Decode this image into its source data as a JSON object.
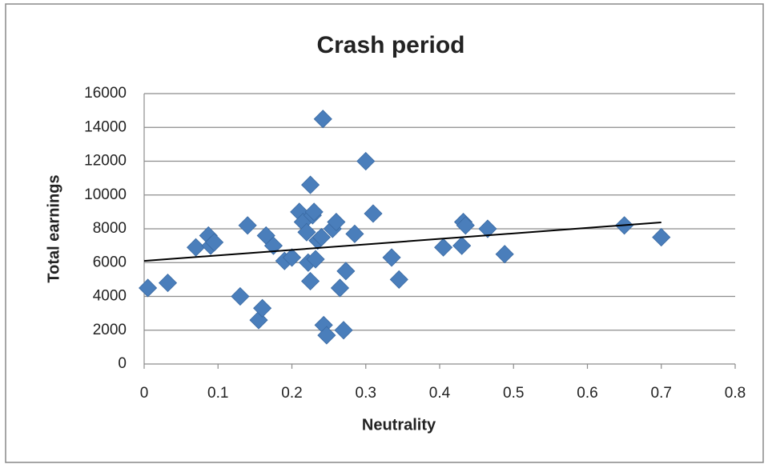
{
  "chart_data": {
    "type": "scatter",
    "title": "Crash period",
    "x_label": "Neutrality",
    "y_label": "Total earnings",
    "color": "#4a7ebb",
    "x": [
      0.005,
      0.032,
      0.07,
      0.087,
      0.09,
      0.095,
      0.13,
      0.14,
      0.155,
      0.16,
      0.165,
      0.175,
      0.19,
      0.2,
      0.21,
      0.215,
      0.22,
      0.222,
      0.225,
      0.225,
      0.228,
      0.23,
      0.232,
      0.235,
      0.24,
      0.242,
      0.243,
      0.247,
      0.255,
      0.26,
      0.265,
      0.27,
      0.273,
      0.285,
      0.3,
      0.31,
      0.335,
      0.345,
      0.405,
      0.43,
      0.432,
      0.435,
      0.465,
      0.488,
      0.65,
      0.7
    ],
    "values": [
      4500,
      4800,
      6900,
      7600,
      7000,
      7200,
      4000,
      8200,
      2600,
      3300,
      7600,
      7000,
      6100,
      6300,
      9000,
      8400,
      7800,
      6000,
      10600,
      4900,
      8800,
      9000,
      6200,
      7300,
      7500,
      14500,
      2300,
      1700,
      8000,
      8400,
      4500,
      2000,
      5500,
      7700,
      12000,
      8900,
      6300,
      5000,
      6900,
      7000,
      8400,
      8200,
      8000,
      6500,
      8200,
      7500
    ],
    "trendline": {
      "x": [
        0,
        0.7
      ],
      "y": [
        6100,
        8380
      ],
      "color": "#000000"
    },
    "xlim": [
      0,
      0.8
    ],
    "xticks": [
      0,
      0.1,
      0.2,
      0.3,
      0.4,
      0.5,
      0.6,
      0.7,
      0.8
    ],
    "ylim": [
      0,
      16000
    ],
    "yticks": [
      0,
      2000,
      4000,
      6000,
      8000,
      10000,
      12000,
      14000,
      16000
    ],
    "grid": true
  }
}
